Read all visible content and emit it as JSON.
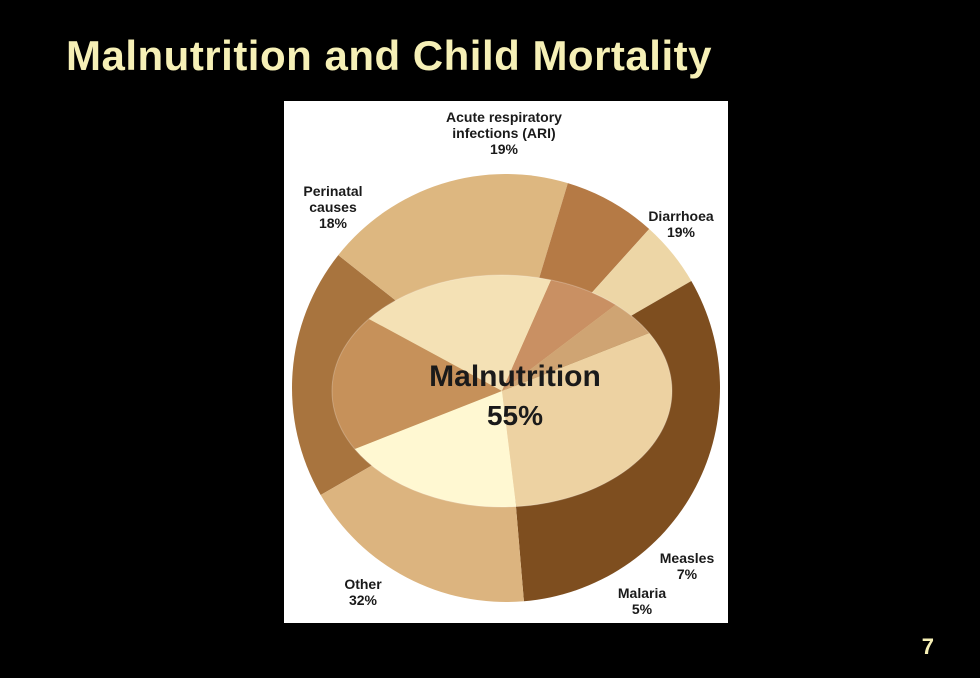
{
  "slide": {
    "title": "Malnutrition and Child Mortality",
    "page_number": "7"
  },
  "chart_data": {
    "type": "pie",
    "categories": [
      "Acute respiratory infections (ARI)",
      "Diarrhoea",
      "Measles",
      "Malaria",
      "Other",
      "Perinatal causes"
    ],
    "values": [
      19,
      19,
      7,
      5,
      32,
      18
    ],
    "units": "%",
    "inner": {
      "label": "Malnutrition",
      "value": 55,
      "value_label": "55%"
    },
    "colors": [
      "#a8743e",
      "#ddb780",
      "#b57a45",
      "#edd6a6",
      "#7e4e1f",
      "#dcb47f"
    ],
    "inner_colors": [
      "#c6915a",
      "#f4e1b5",
      "#c99063",
      "#cfa473",
      "#edd2a2",
      "#fff8d2"
    ],
    "labels": [
      {
        "lines": [
          "Acute respiratory",
          "infections (ARI)",
          "19%"
        ]
      },
      {
        "lines": [
          "Diarrhoea",
          "19%"
        ]
      },
      {
        "lines": [
          "Measles",
          "7%"
        ]
      },
      {
        "lines": [
          "Malaria",
          "5%"
        ]
      },
      {
        "lines": [
          "Other",
          "32%"
        ]
      },
      {
        "lines": [
          "Perinatal",
          "causes",
          "18%"
        ]
      }
    ]
  }
}
